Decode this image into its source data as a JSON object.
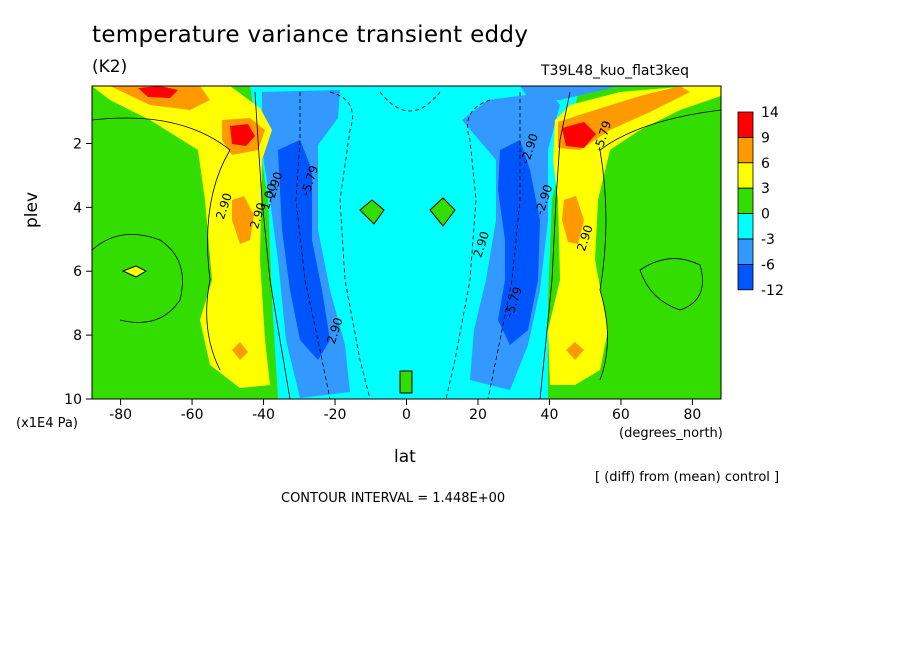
{
  "chart_data": {
    "type": "contour",
    "title": "temperature variance transient eddy",
    "units": "(K2)",
    "run_id": "T39L48_kuo_flat3keq",
    "xlabel": "lat",
    "xunits": "(degrees_north)",
    "ylabel": "plev",
    "yunits": "(x1E4 Pa)",
    "note": "[ (diff) from (mean) control ]",
    "contour_interval": "CONTOUR INTERVAL = 1.448E+00",
    "xlim": [
      -88,
      88
    ],
    "ylim": [
      10,
      0.2
    ],
    "x_ticks": [
      "-80",
      "-60",
      "-40",
      "-20",
      "0",
      "20",
      "40",
      "60",
      "80"
    ],
    "y_ticks": [
      "2",
      "4",
      "6",
      "8",
      "10"
    ],
    "colorbar": {
      "levels": [
        "14",
        "9",
        "6",
        "3",
        "0",
        "-3",
        "-6",
        "-12"
      ],
      "colors": [
        "#ff0000",
        "#ff9900",
        "#ffff00",
        "#33dd00",
        "#00ffff",
        "#3399ff",
        "#0055ff"
      ]
    },
    "contour_labels": [
      {
        "text": "2.90",
        "x": -50,
        "y": 4.0
      },
      {
        "text": "2.90",
        "x": -40.5,
        "y": 4.3
      },
      {
        "text": "1.00",
        "x": -37.5,
        "y": 3.7
      },
      {
        "text": "-2.90",
        "x": -36,
        "y": 3.4
      },
      {
        "text": "-5.79",
        "x": -26,
        "y": 3.2
      },
      {
        "text": "2.90",
        "x": -19,
        "y": 7.9
      },
      {
        "text": "2.90",
        "x": 22,
        "y": 5.2
      },
      {
        "text": "-2.90",
        "x": 35.5,
        "y": 2.2
      },
      {
        "text": "-2.90",
        "x": 39.5,
        "y": 3.8
      },
      {
        "text": "-5.79",
        "x": 31,
        "y": 7.0
      },
      {
        "text": "2.90",
        "x": 51,
        "y": 5.0
      },
      {
        "text": "-5.79",
        "x": 56,
        "y": 1.8
      }
    ],
    "grid": false
  }
}
